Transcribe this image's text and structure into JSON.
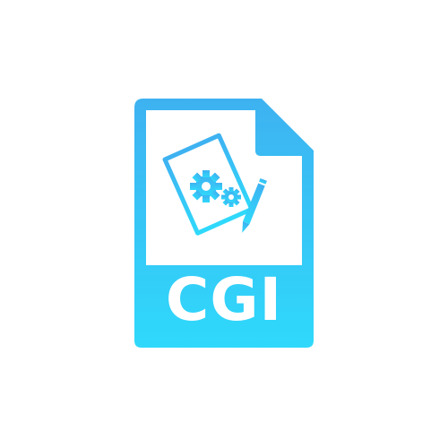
{
  "file_icon": {
    "extension_label": "CGI",
    "icon_name": "cgi-file-icon",
    "inner_icon_name": "document-gears-pen-icon",
    "colors": {
      "gradient_top": "#3eb2f1",
      "gradient_bottom": "#2fd9fb",
      "page_fill": "#ffffff"
    }
  }
}
